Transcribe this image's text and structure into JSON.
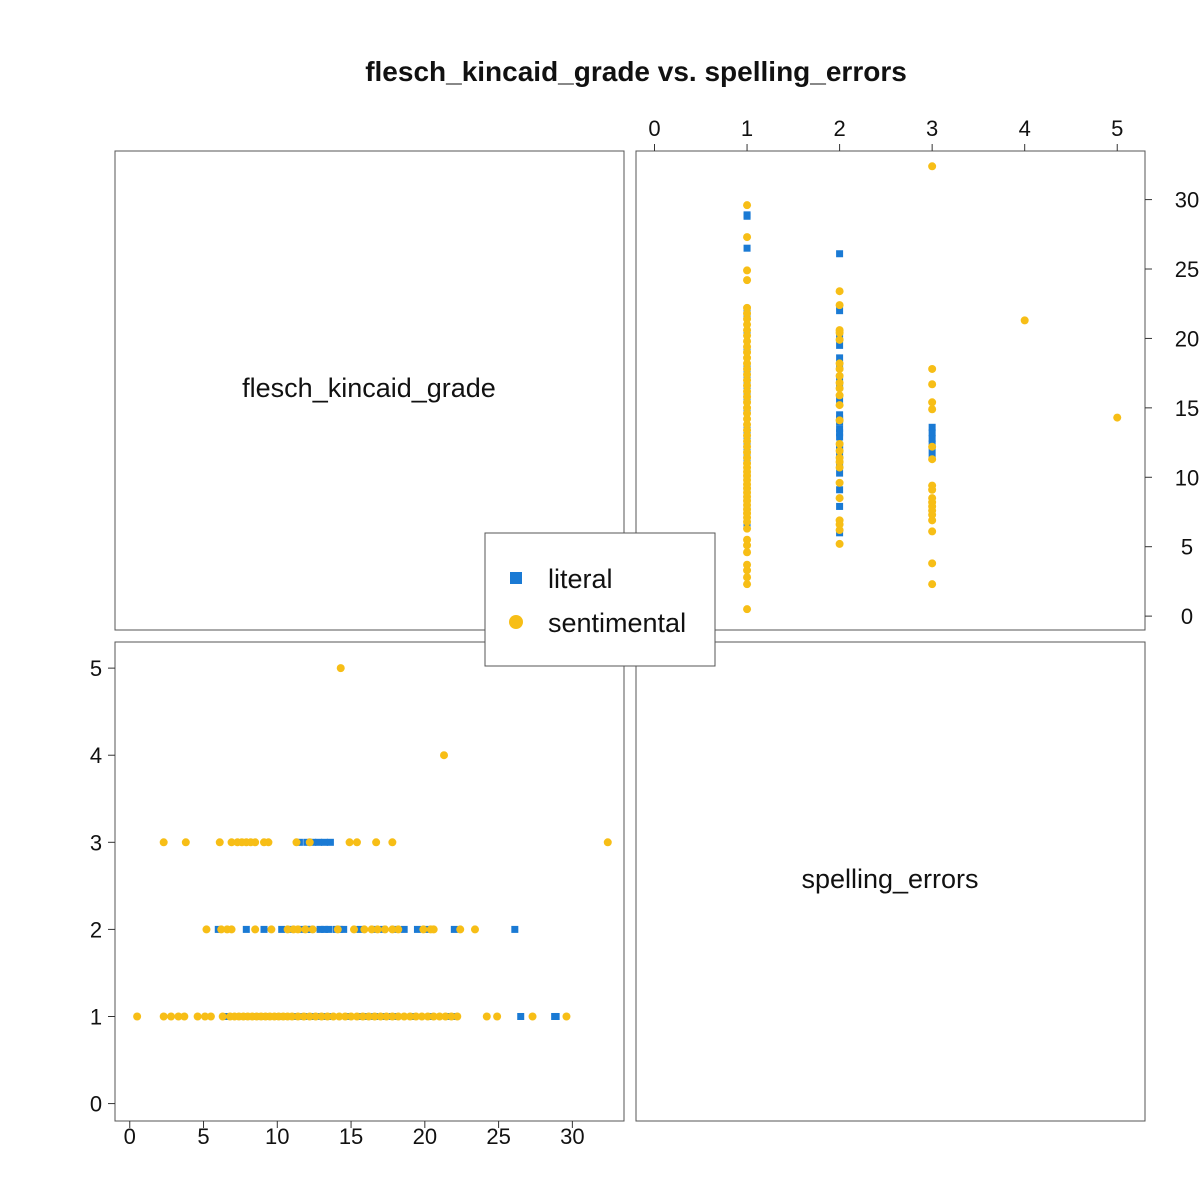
{
  "chart_data": {
    "type": "scatter",
    "title": "flesch_kincaid_grade vs. spelling_errors",
    "variables": [
      "flesch_kincaid_grade",
      "spelling_errors"
    ],
    "colors": {
      "literal": "#1a7ad4",
      "sentimental": "#f7be16"
    },
    "axes": {
      "flesch_kincaid_grade": {
        "range": [
          -1,
          33.5
        ],
        "ticks": [
          0,
          5,
          10,
          15,
          20,
          25,
          30
        ]
      },
      "spelling_errors": {
        "range": [
          -0.2,
          5.3
        ],
        "ticks": [
          0,
          1,
          2,
          3,
          4,
          5
        ]
      }
    },
    "grid": false,
    "legend_position": "center",
    "series": [
      {
        "name": "literal",
        "marker": "square",
        "points": [
          [
            6.5,
            1
          ],
          [
            7.8,
            1
          ],
          [
            9.2,
            1
          ],
          [
            10.5,
            1
          ],
          [
            11.8,
            1
          ],
          [
            12.5,
            1
          ],
          [
            13.4,
            1
          ],
          [
            14.8,
            1
          ],
          [
            15.5,
            1
          ],
          [
            16.6,
            1
          ],
          [
            17.3,
            1
          ],
          [
            18.0,
            1
          ],
          [
            19.2,
            1
          ],
          [
            20.4,
            1
          ],
          [
            21.6,
            1
          ],
          [
            26.5,
            1
          ],
          [
            28.9,
            1
          ],
          [
            28.8,
            1
          ],
          [
            22.0,
            1
          ],
          [
            13.0,
            1
          ],
          [
            11.2,
            1
          ],
          [
            8.6,
            1
          ],
          [
            17.8,
            1
          ],
          [
            10.1,
            1
          ],
          [
            15.9,
            1
          ],
          [
            6.0,
            2
          ],
          [
            7.9,
            2
          ],
          [
            9.1,
            2
          ],
          [
            10.3,
            2
          ],
          [
            11.0,
            2
          ],
          [
            11.7,
            2
          ],
          [
            12.3,
            2
          ],
          [
            12.9,
            2
          ],
          [
            13.5,
            2
          ],
          [
            14.0,
            2
          ],
          [
            14.5,
            2
          ],
          [
            15.6,
            2
          ],
          [
            16.5,
            2
          ],
          [
            17.2,
            2
          ],
          [
            17.9,
            2
          ],
          [
            18.6,
            2
          ],
          [
            19.5,
            2
          ],
          [
            20.2,
            2
          ],
          [
            22.0,
            2
          ],
          [
            26.1,
            2
          ],
          [
            14.2,
            2
          ],
          [
            12.0,
            2
          ],
          [
            13.2,
            2
          ],
          [
            11.5,
            3
          ],
          [
            12.0,
            3
          ],
          [
            12.4,
            3
          ],
          [
            12.8,
            3
          ],
          [
            13.2,
            3
          ],
          [
            13.6,
            3
          ]
        ]
      },
      {
        "name": "sentimental",
        "marker": "circle",
        "points": [
          [
            0.5,
            1
          ],
          [
            2.3,
            1
          ],
          [
            2.8,
            1
          ],
          [
            3.3,
            1
          ],
          [
            3.7,
            1
          ],
          [
            4.6,
            1
          ],
          [
            5.1,
            1
          ],
          [
            5.5,
            1
          ],
          [
            6.3,
            1
          ],
          [
            6.8,
            1
          ],
          [
            7.1,
            1
          ],
          [
            7.4,
            1
          ],
          [
            7.7,
            1
          ],
          [
            8.0,
            1
          ],
          [
            8.3,
            1
          ],
          [
            8.6,
            1
          ],
          [
            8.9,
            1
          ],
          [
            9.2,
            1
          ],
          [
            9.5,
            1
          ],
          [
            9.8,
            1
          ],
          [
            10.1,
            1
          ],
          [
            10.4,
            1
          ],
          [
            10.7,
            1
          ],
          [
            11.0,
            1
          ],
          [
            11.4,
            1
          ],
          [
            11.8,
            1
          ],
          [
            12.2,
            1
          ],
          [
            12.6,
            1
          ],
          [
            13.0,
            1
          ],
          [
            13.4,
            1
          ],
          [
            13.8,
            1
          ],
          [
            14.2,
            1
          ],
          [
            14.6,
            1
          ],
          [
            15.0,
            1
          ],
          [
            15.4,
            1
          ],
          [
            15.8,
            1
          ],
          [
            16.2,
            1
          ],
          [
            16.6,
            1
          ],
          [
            17.0,
            1
          ],
          [
            17.4,
            1
          ],
          [
            17.8,
            1
          ],
          [
            18.2,
            1
          ],
          [
            18.6,
            1
          ],
          [
            19.0,
            1
          ],
          [
            19.4,
            1
          ],
          [
            19.8,
            1
          ],
          [
            20.2,
            1
          ],
          [
            20.6,
            1
          ],
          [
            21.0,
            1
          ],
          [
            21.4,
            1
          ],
          [
            21.8,
            1
          ],
          [
            22.2,
            1
          ],
          [
            24.2,
            1
          ],
          [
            24.9,
            1
          ],
          [
            27.3,
            1
          ],
          [
            29.6,
            1
          ],
          [
            5.2,
            2
          ],
          [
            6.2,
            2
          ],
          [
            6.6,
            2
          ],
          [
            6.9,
            2
          ],
          [
            8.5,
            2
          ],
          [
            9.6,
            2
          ],
          [
            10.7,
            2
          ],
          [
            11.1,
            2
          ],
          [
            11.4,
            2
          ],
          [
            11.9,
            2
          ],
          [
            12.4,
            2
          ],
          [
            14.1,
            2
          ],
          [
            15.2,
            2
          ],
          [
            15.9,
            2
          ],
          [
            16.4,
            2
          ],
          [
            16.8,
            2
          ],
          [
            17.3,
            2
          ],
          [
            17.8,
            2
          ],
          [
            18.2,
            2
          ],
          [
            19.9,
            2
          ],
          [
            20.4,
            2
          ],
          [
            20.6,
            2
          ],
          [
            22.4,
            2
          ],
          [
            23.4,
            2
          ],
          [
            2.3,
            3
          ],
          [
            3.8,
            3
          ],
          [
            6.1,
            3
          ],
          [
            6.9,
            3
          ],
          [
            7.3,
            3
          ],
          [
            7.6,
            3
          ],
          [
            7.9,
            3
          ],
          [
            8.2,
            3
          ],
          [
            8.5,
            3
          ],
          [
            9.1,
            3
          ],
          [
            9.4,
            3
          ],
          [
            11.3,
            3
          ],
          [
            12.2,
            3
          ],
          [
            14.9,
            3
          ],
          [
            15.4,
            3
          ],
          [
            16.7,
            3
          ],
          [
            17.8,
            3
          ],
          [
            32.4,
            3
          ],
          [
            21.3,
            4
          ],
          [
            14.3,
            5
          ]
        ]
      }
    ]
  }
}
